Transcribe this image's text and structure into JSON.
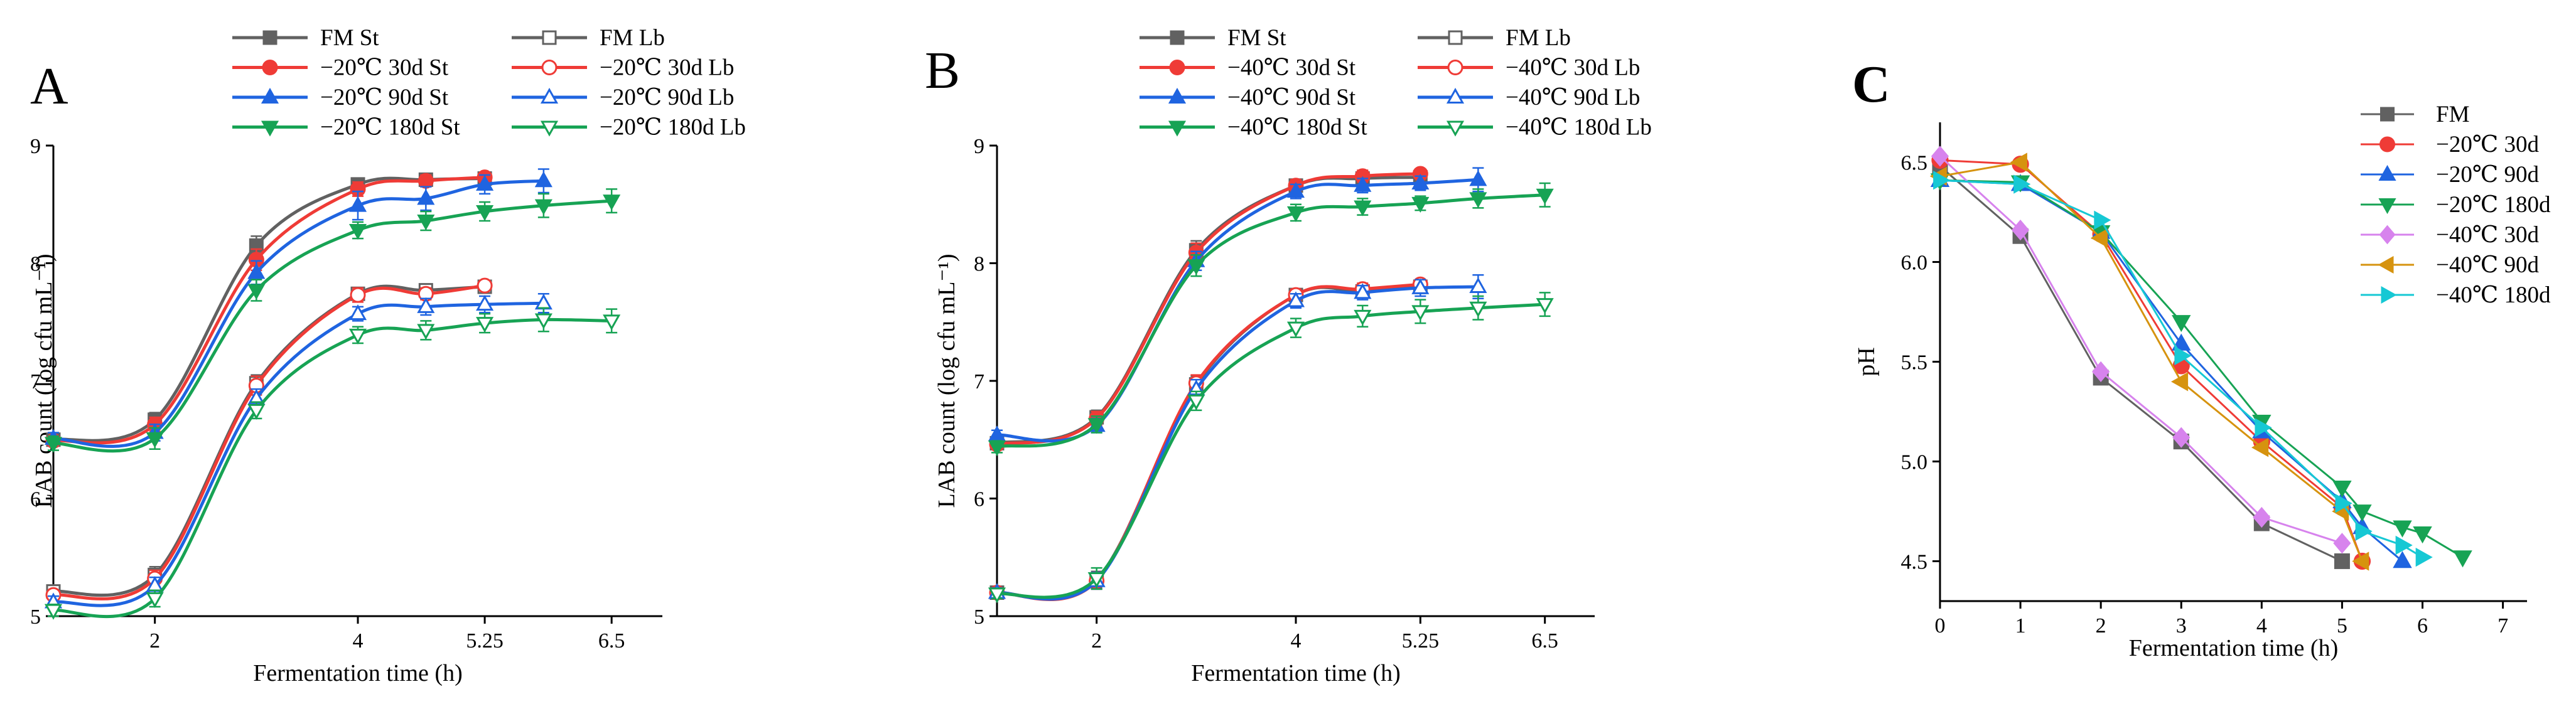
{
  "colors": {
    "FM": "#616161",
    "m20_30d": "#ef3b36",
    "m20_90d": "#1f64e0",
    "m20_180d": "#17a354",
    "m40_30d": "#d783ed",
    "m40_90d": "#d6930f",
    "m40_180d": "#16c8d4"
  },
  "chart_data": [
    {
      "type": "line",
      "panel_label": "A",
      "xlabel": "Fermentation time (h)",
      "ylabel": "LAB count (log cfu mL⁻¹)",
      "xlim": [
        1,
        7
      ],
      "ylim": [
        5,
        9
      ],
      "xticks": [
        2,
        4,
        5.25,
        6.5
      ],
      "xtick_labels": [
        "2",
        "4",
        "5.25",
        "6.5"
      ],
      "yticks": [
        5,
        6,
        7,
        8,
        9
      ],
      "ytick_labels": [
        "5",
        "6",
        "7",
        "8",
        "9"
      ],
      "legend_position": "top",
      "series": [
        {
          "name": "FM  St",
          "color_key": "FM",
          "marker": "square",
          "filled": true,
          "x": [
            1,
            2,
            3,
            4,
            4.67,
            5.25
          ],
          "y": [
            6.5,
            6.67,
            8.15,
            8.67,
            8.71,
            8.72
          ],
          "err": [
            0.04,
            0.06,
            0.08,
            0.05,
            0.05,
            0.04
          ]
        },
        {
          "name": "FM  Lb",
          "color_key": "FM",
          "marker": "square",
          "filled": false,
          "x": [
            1,
            2,
            3,
            4,
            4.67,
            5.25
          ],
          "y": [
            5.21,
            5.35,
            6.98,
            7.74,
            7.77,
            7.8
          ],
          "err": [
            0.05,
            0.07,
            0.07,
            0.05,
            0.05,
            0.04
          ]
        },
        {
          "name": "−20℃ 30d St",
          "color_key": "m20_30d",
          "marker": "circle",
          "filled": true,
          "x": [
            1,
            2,
            3,
            4,
            4.67,
            5.25
          ],
          "y": [
            6.49,
            6.63,
            8.03,
            8.63,
            8.7,
            8.73
          ],
          "err": [
            0.04,
            0.06,
            0.09,
            0.06,
            0.05,
            0.04
          ]
        },
        {
          "name": "−20℃ 30d Lb",
          "color_key": "m20_30d",
          "marker": "circle",
          "filled": false,
          "x": [
            1,
            2,
            3,
            4,
            4.67,
            5.25
          ],
          "y": [
            5.18,
            5.32,
            6.96,
            7.73,
            7.74,
            7.81
          ],
          "err": [
            0.04,
            0.07,
            0.08,
            0.06,
            0.05,
            0.04
          ]
        },
        {
          "name": "−20℃ 90d St",
          "color_key": "m20_90d",
          "marker": "triangle-up",
          "filled": true,
          "x": [
            1,
            2,
            3,
            4,
            4.67,
            5.25,
            5.83
          ],
          "y": [
            6.51,
            6.56,
            7.92,
            8.49,
            8.55,
            8.67,
            8.7
          ],
          "err": [
            0.05,
            0.07,
            0.1,
            0.12,
            0.1,
            0.08,
            0.1
          ]
        },
        {
          "name": "−20℃ 90d Lb",
          "color_key": "m20_90d",
          "marker": "triangle-up",
          "filled": false,
          "x": [
            1,
            2,
            3,
            4,
            4.67,
            5.25,
            5.83
          ],
          "y": [
            5.12,
            5.26,
            6.85,
            7.57,
            7.63,
            7.65,
            7.66
          ],
          "err": [
            0.05,
            0.07,
            0.08,
            0.06,
            0.07,
            0.07,
            0.08
          ]
        },
        {
          "name": "−20℃ 180d St",
          "color_key": "m20_180d",
          "marker": "triangle-down",
          "filled": true,
          "x": [
            1,
            2,
            3,
            4,
            4.67,
            5.25,
            5.83,
            6.5
          ],
          "y": [
            6.47,
            6.51,
            7.77,
            8.28,
            8.36,
            8.44,
            8.49,
            8.53
          ],
          "err": [
            0.06,
            0.09,
            0.09,
            0.07,
            0.08,
            0.08,
            0.1,
            0.1
          ]
        },
        {
          "name": "−20℃ 180d Lb",
          "color_key": "m20_180d",
          "marker": "triangle-down",
          "filled": false,
          "x": [
            1,
            2,
            3,
            4,
            4.67,
            5.25,
            5.83,
            6.5
          ],
          "y": [
            5.05,
            5.15,
            6.75,
            7.39,
            7.43,
            7.49,
            7.52,
            7.51
          ],
          "err": [
            0.05,
            0.07,
            0.07,
            0.07,
            0.08,
            0.08,
            0.1,
            0.1
          ]
        }
      ]
    },
    {
      "type": "line",
      "panel_label": "B",
      "xlabel": "Fermentation time (h)",
      "ylabel": "LAB count (log cfu mL⁻¹)",
      "xlim": [
        1,
        7
      ],
      "ylim": [
        5,
        9
      ],
      "xticks": [
        2,
        4,
        5.25,
        6.5
      ],
      "xtick_labels": [
        "2",
        "4",
        "5.25",
        "6.5"
      ],
      "yticks": [
        5,
        6,
        7,
        8,
        9
      ],
      "ytick_labels": [
        "5",
        "6",
        "7",
        "8",
        "9"
      ],
      "legend_position": "top",
      "series": [
        {
          "name": "FM  St",
          "color_key": "FM",
          "marker": "square",
          "filled": true,
          "x": [
            1,
            2,
            3,
            4,
            4.67,
            5.25
          ],
          "y": [
            6.47,
            6.69,
            8.11,
            8.66,
            8.72,
            8.73
          ],
          "err": [
            0.04,
            0.06,
            0.08,
            0.05,
            0.05,
            0.04
          ]
        },
        {
          "name": "FM  Lb",
          "color_key": "FM",
          "marker": "square",
          "filled": false,
          "x": [
            1,
            2,
            3,
            4,
            4.67,
            5.25
          ],
          "y": [
            5.2,
            5.31,
            6.97,
            7.73,
            7.76,
            7.8
          ],
          "err": [
            0.04,
            0.07,
            0.07,
            0.05,
            0.05,
            0.04
          ]
        },
        {
          "name": "−40℃ 30d St",
          "color_key": "m20_30d",
          "marker": "circle",
          "filled": true,
          "x": [
            1,
            2,
            3,
            4,
            4.67,
            5.25
          ],
          "y": [
            6.46,
            6.68,
            8.09,
            8.66,
            8.74,
            8.76
          ],
          "err": [
            0.04,
            0.06,
            0.08,
            0.05,
            0.05,
            0.04
          ]
        },
        {
          "name": "−40℃ 30d Lb",
          "color_key": "m20_30d",
          "marker": "circle",
          "filled": false,
          "x": [
            1,
            2,
            3,
            4,
            4.67,
            5.25
          ],
          "y": [
            5.2,
            5.3,
            6.98,
            7.73,
            7.78,
            7.82
          ],
          "err": [
            0.04,
            0.07,
            0.07,
            0.05,
            0.05,
            0.04
          ]
        },
        {
          "name": "−40℃ 90d St",
          "color_key": "m20_90d",
          "marker": "triangle-up",
          "filled": true,
          "x": [
            1,
            2,
            3,
            4,
            4.67,
            5.25,
            5.83
          ],
          "y": [
            6.54,
            6.62,
            8.02,
            8.61,
            8.66,
            8.68,
            8.71
          ],
          "err": [
            0.04,
            0.06,
            0.08,
            0.06,
            0.06,
            0.06,
            0.1
          ]
        },
        {
          "name": "−40℃ 90d Lb",
          "color_key": "m20_90d",
          "marker": "triangle-up",
          "filled": false,
          "x": [
            1,
            2,
            3,
            4,
            4.67,
            5.25,
            5.83
          ],
          "y": [
            5.2,
            5.3,
            6.93,
            7.68,
            7.75,
            7.79,
            7.8
          ],
          "err": [
            0.04,
            0.07,
            0.08,
            0.06,
            0.06,
            0.07,
            0.1
          ]
        },
        {
          "name": "−40℃ 180d St",
          "color_key": "m20_180d",
          "marker": "triangle-down",
          "filled": true,
          "x": [
            1,
            2,
            3,
            4,
            4.67,
            5.25,
            5.83,
            6.5
          ],
          "y": [
            6.44,
            6.63,
            7.98,
            8.43,
            8.48,
            8.51,
            8.55,
            8.58
          ],
          "err": [
            0.05,
            0.07,
            0.09,
            0.07,
            0.07,
            0.06,
            0.08,
            0.1
          ]
        },
        {
          "name": "−40℃ 180d Lb",
          "color_key": "m20_180d",
          "marker": "triangle-down",
          "filled": false,
          "x": [
            1,
            2,
            3,
            4,
            4.67,
            5.25,
            5.83,
            6.5
          ],
          "y": [
            5.19,
            5.32,
            6.83,
            7.45,
            7.55,
            7.59,
            7.62,
            7.65
          ],
          "err": [
            0.04,
            0.09,
            0.08,
            0.08,
            0.09,
            0.1,
            0.1,
            0.1
          ]
        }
      ]
    },
    {
      "type": "line",
      "panel_label": "C",
      "xlabel": "Fermentation time (h)",
      "ylabel": "pH",
      "xlim": [
        0,
        7.3
      ],
      "ylim": [
        4.3,
        6.7
      ],
      "xticks": [
        0,
        1,
        2,
        3,
        4,
        5,
        6,
        7
      ],
      "xtick_labels": [
        "0",
        "1",
        "2",
        "3",
        "4",
        "5",
        "6",
        "7"
      ],
      "yticks": [
        4.5,
        5.0,
        5.5,
        6.0,
        6.5
      ],
      "ytick_labels": [
        "4.5",
        "5.0",
        "5.5",
        "6.0",
        "6.5"
      ],
      "legend_position": "top-right",
      "series": [
        {
          "name": "FM",
          "color_key": "FM",
          "marker": "square",
          "x": [
            0,
            1,
            2,
            3,
            4,
            5
          ],
          "y": [
            6.48,
            6.13,
            5.42,
            5.1,
            4.69,
            4.5
          ]
        },
        {
          "name": "−20℃ 30d",
          "color_key": "m20_30d",
          "marker": "circle",
          "x": [
            0,
            1,
            2,
            3,
            4,
            5,
            5.25
          ],
          "y": [
            6.51,
            6.49,
            6.14,
            5.48,
            5.1,
            4.77,
            4.5
          ]
        },
        {
          "name": "−20℃ 90d",
          "color_key": "m20_90d",
          "marker": "triangle-up",
          "x": [
            0,
            1,
            2,
            3,
            4,
            5,
            5.25,
            5.75
          ],
          "y": [
            6.41,
            6.39,
            6.15,
            5.59,
            5.15,
            4.8,
            4.67,
            4.5
          ]
        },
        {
          "name": "−20℃ 180d",
          "color_key": "m20_180d",
          "marker": "triangle-down",
          "x": [
            0,
            1,
            2,
            3,
            4,
            5,
            5.25,
            5.75,
            6,
            6.5
          ],
          "y": [
            6.41,
            6.4,
            6.15,
            5.7,
            5.2,
            4.87,
            4.75,
            4.67,
            4.64,
            4.52
          ]
        },
        {
          "name": "−40℃ 30d",
          "color_key": "m40_30d",
          "marker": "diamond",
          "x": [
            0,
            1,
            2,
            3,
            4,
            5
          ],
          "y": [
            6.53,
            6.16,
            5.45,
            5.12,
            4.72,
            4.59
          ]
        },
        {
          "name": "−40℃ 90d",
          "color_key": "m40_90d",
          "marker": "triangle-left",
          "x": [
            0,
            1,
            2,
            3,
            4,
            5,
            5.25
          ],
          "y": [
            6.43,
            6.5,
            6.12,
            5.4,
            5.07,
            4.75,
            4.5
          ]
        },
        {
          "name": "−40℃ 180d",
          "color_key": "m40_180d",
          "marker": "triangle-right",
          "x": [
            0,
            1,
            2,
            3,
            4,
            5,
            5.25,
            5.75,
            6
          ],
          "y": [
            6.41,
            6.39,
            6.21,
            5.53,
            5.17,
            4.79,
            4.65,
            4.58,
            4.52
          ]
        }
      ]
    }
  ]
}
